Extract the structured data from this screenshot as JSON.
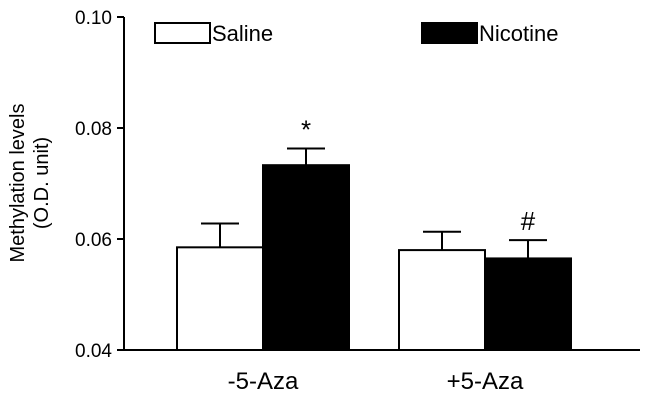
{
  "chart_data": {
    "type": "bar",
    "categories": [
      "-5-Aza",
      "+5-Aza"
    ],
    "series": [
      {
        "name": "Saline",
        "color": "#ffffff",
        "values": [
          0.0585,
          0.058
        ],
        "errors": [
          0.0043,
          0.0033
        ]
      },
      {
        "name": "Nicotine",
        "color": "#000000",
        "values": [
          0.0733,
          0.0565
        ],
        "errors": [
          0.003,
          0.0033
        ]
      }
    ],
    "ylabel": [
      "Methylation levels",
      "(O.D. unit)"
    ],
    "ylim": [
      0.04,
      0.1
    ],
    "yticks": [
      "0.04",
      "0.06",
      "0.08",
      "0.10"
    ],
    "ytick_values": [
      0.04,
      0.06,
      0.08,
      0.1
    ],
    "annotations": [
      {
        "text": "*",
        "category": 0,
        "series": 1
      },
      {
        "text": "#",
        "category": 1,
        "series": 1
      }
    ],
    "legend_position": "top",
    "grid": false
  }
}
